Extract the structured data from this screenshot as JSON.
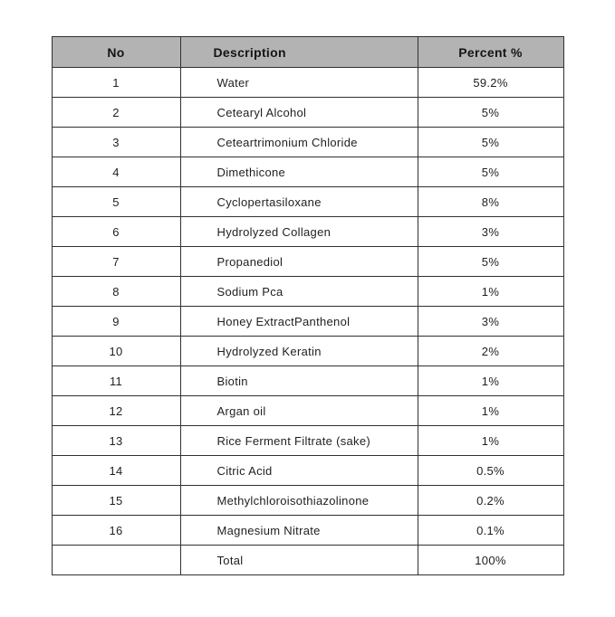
{
  "table": {
    "colors": {
      "header_bg": "#b3b3b3",
      "border": "#303030",
      "text": "#1f1f1f"
    },
    "columns": [
      {
        "key": "no",
        "label": "No"
      },
      {
        "key": "description",
        "label": "Description"
      },
      {
        "key": "percent",
        "label": "Percent %"
      }
    ],
    "rows": [
      {
        "no": "1",
        "description": "Water",
        "percent": "59.2%"
      },
      {
        "no": "2",
        "description": "Cetearyl Alcohol",
        "percent": "5%"
      },
      {
        "no": "3",
        "description": "Ceteartrimonium Chloride",
        "percent": "5%"
      },
      {
        "no": "4",
        "description": "Dimethicone",
        "percent": "5%"
      },
      {
        "no": "5",
        "description": "Cyclopertasiloxane",
        "percent": "8%"
      },
      {
        "no": "6",
        "description": "Hydrolyzed Collagen",
        "percent": "3%"
      },
      {
        "no": "7",
        "description": "Propanediol",
        "percent": "5%"
      },
      {
        "no": "8",
        "description": "Sodium Pca",
        "percent": "1%"
      },
      {
        "no": "9",
        "description": "Honey ExtractPanthenol",
        "percent": "3%"
      },
      {
        "no": "10",
        "description": "Hydrolyzed Keratin",
        "percent": "2%"
      },
      {
        "no": "11",
        "description": "Biotin",
        "percent": "1%"
      },
      {
        "no": "12",
        "description": "Argan oil",
        "percent": "1%"
      },
      {
        "no": "13",
        "description": "Rice Ferment Filtrate (sake)",
        "percent": "1%"
      },
      {
        "no": "14",
        "description": "Citric Acid",
        "percent": "0.5%"
      },
      {
        "no": "15",
        "description": "Methylchloroisothiazolinone",
        "percent": "0.2%"
      },
      {
        "no": "16",
        "description": "Magnesium Nitrate",
        "percent": "0.1%"
      },
      {
        "no": "",
        "description": "Total",
        "percent": "100%"
      }
    ]
  }
}
